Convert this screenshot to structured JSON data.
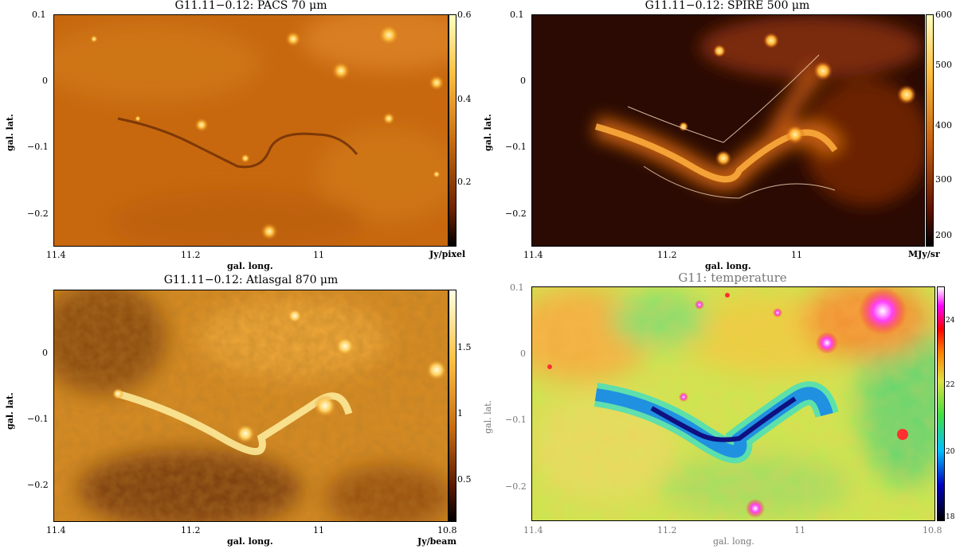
{
  "panels": [
    {
      "title": "G11.11−0.12:  PACS 70 μm",
      "xlabel": "gal. long.",
      "ylabel": "gal. lat.",
      "unit": "Jy/pixel",
      "x_ticks": [
        "11.4",
        "11.2",
        "11"
      ],
      "y_ticks": [
        "0.1",
        "0",
        "−0.1",
        "−0.2"
      ],
      "cbar_ticks": [
        "0.6",
        "0.4",
        "0.2"
      ]
    },
    {
      "title": "G11.11−0.12:  SPIRE 500 μm",
      "xlabel": "gal. long.",
      "ylabel": "gal. lat.",
      "unit": "MJy/sr",
      "x_ticks": [
        "11.4",
        "11.2",
        "11"
      ],
      "y_ticks": [
        "0.1",
        "0",
        "−0.1",
        "−0.2"
      ],
      "cbar_ticks": [
        "600",
        "500",
        "400",
        "300",
        "200"
      ]
    },
    {
      "title": "G11.11−0.12:  Atlasgal 870 μm",
      "xlabel": "gal. long.",
      "ylabel": "gal. lat.",
      "unit": "Jy/beam",
      "x_ticks": [
        "11.4",
        "11.2",
        "11",
        "10.8"
      ],
      "y_ticks": [
        "0",
        "−0.1",
        "−0.2"
      ],
      "cbar_ticks": [
        "1.5",
        "1",
        "0.5"
      ]
    },
    {
      "title": "G11: temperature",
      "xlabel": "gal. long.",
      "ylabel": "gal. lat.",
      "unit": "",
      "x_ticks": [
        "11.4",
        "11.2",
        "11",
        "10.8"
      ],
      "y_ticks": [
        "0.1",
        "0",
        "−0.1",
        "−0.2"
      ],
      "cbar_ticks": [
        "24",
        "22",
        "20",
        "18"
      ]
    }
  ],
  "colors": {
    "heat_dark": "#1a0700",
    "heat_mid": "#c86a10",
    "heat_bright": "#ffe080",
    "temp_cold": "#0000a0",
    "temp_mid": "#60e060",
    "temp_hot": "#ff00ff"
  }
}
